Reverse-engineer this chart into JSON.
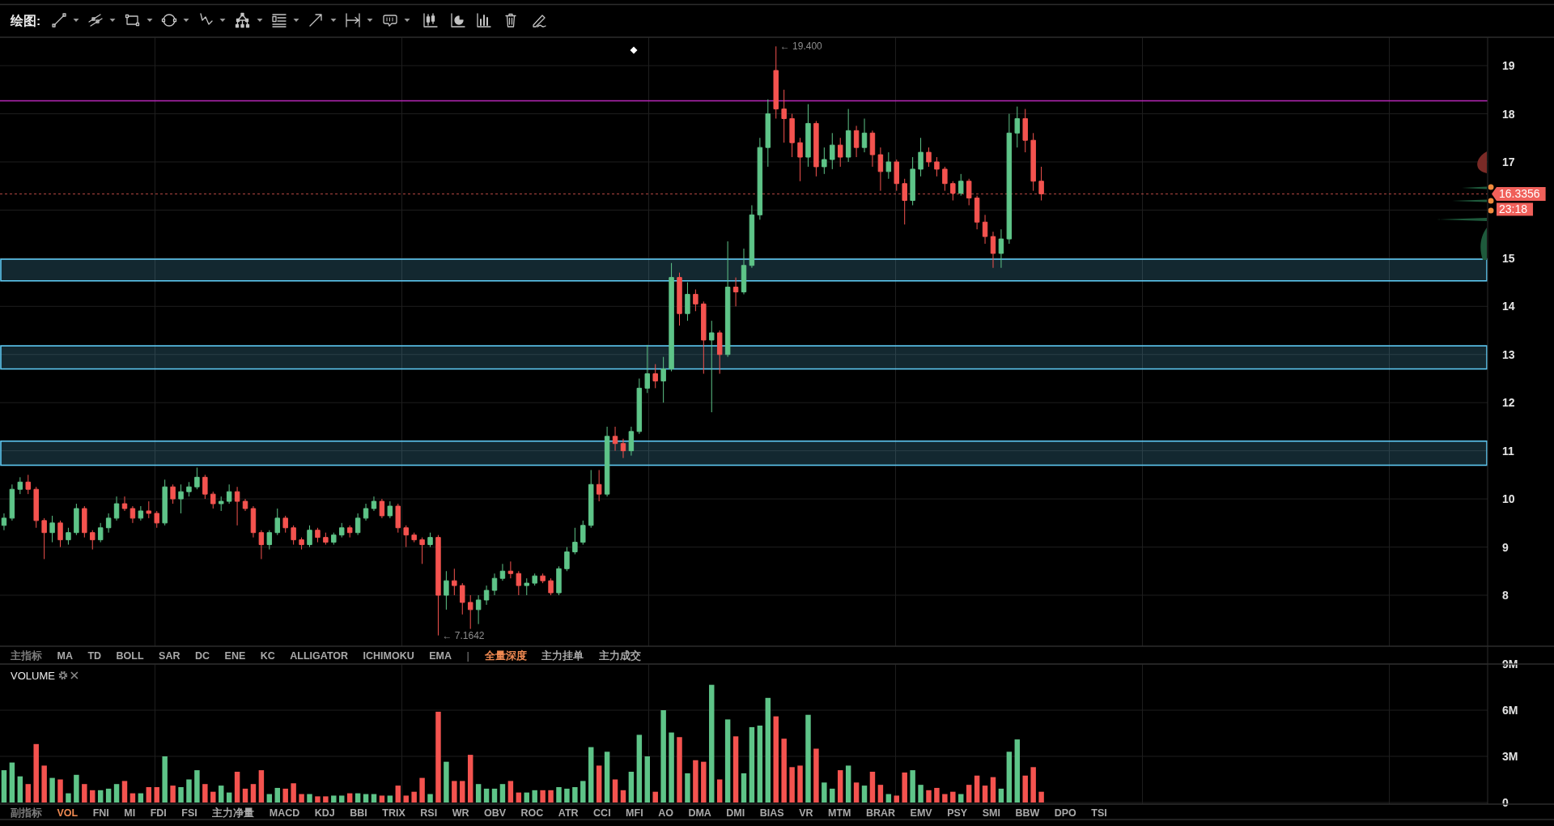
{
  "chart_data": [
    {
      "type": "other",
      "annotations": [
        "绘图:"
      ]
    },
    {
      "type": "candlestick",
      "categories": [
        null,
        null,
        null,
        null,
        null,
        null,
        null,
        null,
        null,
        null,
        null,
        null,
        null,
        null,
        null,
        null,
        null,
        null,
        null,
        null,
        null,
        null,
        null,
        null,
        null,
        null,
        null,
        null,
        null,
        null,
        null,
        null,
        null,
        null,
        null,
        null,
        null,
        null,
        null,
        null,
        null,
        null,
        null,
        null,
        null,
        null,
        null,
        null,
        null,
        null,
        null,
        null,
        null,
        null,
        null,
        null,
        null,
        null,
        null,
        null,
        null,
        null,
        null,
        null,
        null,
        null,
        null,
        null,
        null,
        null,
        null,
        null,
        null,
        null,
        null,
        null,
        null,
        null,
        null,
        null,
        null,
        null,
        null,
        null,
        null,
        null,
        null,
        null,
        null,
        null,
        null,
        null,
        null,
        null,
        null,
        null,
        null,
        null,
        null,
        null,
        null,
        null,
        null,
        null,
        null,
        null,
        null,
        null,
        null,
        null,
        null,
        null,
        null,
        null,
        null,
        null,
        null,
        null,
        null,
        null,
        null,
        null,
        null,
        null,
        null,
        null,
        null,
        null,
        null,
        null,
        null,
        null,
        null,
        null,
        null,
        null,
        null,
        null,
        null,
        null,
        null,
        null,
        null,
        null,
        null,
        null,
        null,
        null,
        null,
        null,
        null,
        null,
        null,
        null,
        null,
        null,
        null,
        null,
        null,
        null,
        null,
        null,
        null,
        null,
        null,
        null,
        null,
        null,
        null,
        null,
        null,
        null,
        null,
        null,
        null,
        null,
        null,
        null,
        null,
        null,
        null,
        null,
        null,
        null,
        null
      ],
      "ohlc": [
        [
          9.45,
          9.7,
          9.35,
          9.6
        ],
        [
          9.6,
          10.3,
          9.55,
          10.2
        ],
        [
          10.2,
          10.45,
          10.1,
          10.35
        ],
        [
          10.35,
          10.5,
          10.1,
          10.2
        ],
        [
          10.2,
          10.25,
          9.4,
          9.55
        ],
        [
          9.55,
          9.6,
          8.75,
          9.3
        ],
        [
          9.3,
          9.65,
          9.1,
          9.5
        ],
        [
          9.5,
          9.55,
          9.0,
          9.15
        ],
        [
          9.15,
          9.4,
          9.05,
          9.3
        ],
        [
          9.3,
          9.9,
          9.25,
          9.8
        ],
        [
          9.8,
          9.85,
          9.2,
          9.3
        ],
        [
          9.3,
          9.35,
          8.95,
          9.15
        ],
        [
          9.15,
          9.5,
          9.1,
          9.4
        ],
        [
          9.4,
          9.7,
          9.3,
          9.6
        ],
        [
          9.6,
          10.05,
          9.55,
          9.9
        ],
        [
          9.9,
          10.05,
          9.75,
          9.8
        ],
        [
          9.8,
          9.85,
          9.5,
          9.6
        ],
        [
          9.6,
          9.85,
          9.55,
          9.75
        ],
        [
          9.75,
          9.95,
          9.6,
          9.7
        ],
        [
          9.7,
          9.75,
          9.4,
          9.5
        ],
        [
          9.5,
          10.4,
          9.45,
          10.25
        ],
        [
          10.25,
          10.3,
          9.9,
          10.0
        ],
        [
          10.0,
          10.3,
          9.7,
          10.15
        ],
        [
          10.15,
          10.35,
          10.05,
          10.25
        ],
        [
          10.25,
          10.65,
          10.2,
          10.45
        ],
        [
          10.45,
          10.5,
          10.0,
          10.1
        ],
        [
          10.1,
          10.15,
          9.8,
          9.9
        ],
        [
          9.9,
          10.05,
          9.75,
          9.95
        ],
        [
          9.95,
          10.3,
          9.9,
          10.15
        ],
        [
          10.15,
          10.25,
          9.45,
          9.95
        ],
        [
          9.95,
          10.0,
          9.75,
          9.8
        ],
        [
          9.8,
          9.85,
          9.2,
          9.3
        ],
        [
          9.3,
          9.35,
          8.75,
          9.05
        ],
        [
          9.05,
          9.35,
          8.95,
          9.3
        ],
        [
          9.3,
          9.8,
          9.25,
          9.6
        ],
        [
          9.6,
          9.65,
          9.3,
          9.4
        ],
        [
          9.4,
          9.45,
          9.05,
          9.15
        ],
        [
          9.15,
          9.2,
          8.95,
          9.05
        ],
        [
          9.05,
          9.45,
          9.0,
          9.35
        ],
        [
          9.35,
          9.4,
          9.1,
          9.2
        ],
        [
          9.2,
          9.3,
          9.05,
          9.1
        ],
        [
          9.1,
          9.3,
          9.05,
          9.25
        ],
        [
          9.25,
          9.5,
          9.2,
          9.4
        ],
        [
          9.4,
          9.45,
          9.2,
          9.3
        ],
        [
          9.3,
          9.7,
          9.25,
          9.6
        ],
        [
          9.6,
          9.9,
          9.55,
          9.8
        ],
        [
          9.8,
          10.05,
          9.75,
          9.95
        ],
        [
          9.95,
          10.0,
          9.6,
          9.65
        ],
        [
          9.65,
          9.95,
          9.6,
          9.85
        ],
        [
          9.85,
          9.9,
          9.3,
          9.4
        ],
        [
          9.4,
          9.45,
          9.0,
          9.25
        ],
        [
          9.25,
          9.3,
          9.1,
          9.15
        ],
        [
          9.15,
          9.2,
          8.65,
          9.05
        ],
        [
          9.05,
          9.3,
          9.0,
          9.2
        ],
        [
          9.2,
          9.25,
          7.1642,
          8.0
        ],
        [
          8.0,
          8.5,
          7.7,
          8.3
        ],
        [
          8.3,
          8.55,
          8.0,
          8.2
        ],
        [
          8.2,
          8.25,
          7.6,
          7.85
        ],
        [
          7.85,
          8.0,
          7.3,
          7.7
        ],
        [
          7.7,
          8.0,
          7.4,
          7.9
        ],
        [
          7.9,
          8.2,
          7.8,
          8.1
        ],
        [
          8.1,
          8.45,
          8.0,
          8.35
        ],
        [
          8.35,
          8.65,
          8.3,
          8.5
        ],
        [
          8.5,
          8.7,
          8.35,
          8.45
        ],
        [
          8.45,
          8.5,
          8.0,
          8.2
        ],
        [
          8.2,
          8.35,
          8.0,
          8.25
        ],
        [
          8.25,
          8.45,
          8.2,
          8.4
        ],
        [
          8.4,
          8.45,
          8.25,
          8.3
        ],
        [
          8.3,
          8.35,
          8.0,
          8.05
        ],
        [
          8.05,
          8.6,
          8.0,
          8.55
        ],
        [
          8.55,
          9.0,
          8.5,
          8.9
        ],
        [
          8.9,
          9.4,
          8.85,
          9.1
        ],
        [
          9.1,
          9.55,
          9.05,
          9.45
        ],
        [
          9.45,
          10.6,
          9.4,
          10.3
        ],
        [
          10.3,
          10.6,
          9.95,
          10.1
        ],
        [
          10.1,
          11.5,
          10.05,
          11.3
        ],
        [
          11.3,
          11.5,
          11.0,
          11.15
        ],
        [
          11.15,
          11.25,
          10.85,
          11.0
        ],
        [
          11.0,
          11.5,
          10.9,
          11.4
        ],
        [
          11.4,
          12.5,
          11.35,
          12.3
        ],
        [
          12.3,
          13.2,
          12.2,
          12.6
        ],
        [
          12.6,
          12.8,
          12.3,
          12.45
        ],
        [
          12.45,
          12.95,
          12.0,
          12.7
        ],
        [
          12.7,
          14.9,
          12.65,
          14.6
        ],
        [
          14.6,
          14.7,
          13.6,
          13.85
        ],
        [
          13.85,
          14.5,
          13.7,
          14.25
        ],
        [
          14.25,
          14.35,
          13.9,
          14.05
        ],
        [
          14.05,
          14.1,
          12.6,
          13.3
        ],
        [
          13.3,
          13.7,
          11.8,
          13.45
        ],
        [
          13.45,
          13.5,
          12.6,
          13.0
        ],
        [
          13.0,
          15.35,
          12.95,
          14.4
        ],
        [
          14.4,
          14.6,
          14.0,
          14.3
        ],
        [
          14.3,
          15.2,
          14.25,
          14.85
        ],
        [
          14.85,
          16.1,
          14.8,
          15.9
        ],
        [
          15.9,
          17.5,
          15.8,
          17.3
        ],
        [
          17.3,
          18.3,
          16.9,
          18.0
        ],
        [
          18.9,
          19.4,
          17.9,
          18.1
        ],
        [
          18.1,
          18.5,
          17.4,
          17.9
        ],
        [
          17.9,
          18.0,
          17.1,
          17.4
        ],
        [
          17.4,
          17.5,
          16.6,
          17.1
        ],
        [
          17.1,
          18.2,
          16.9,
          17.8
        ],
        [
          17.8,
          17.85,
          16.7,
          16.9
        ],
        [
          16.9,
          17.3,
          16.75,
          17.05
        ],
        [
          17.05,
          17.6,
          16.85,
          17.35
        ],
        [
          17.35,
          17.5,
          16.9,
          17.1
        ],
        [
          17.1,
          18.1,
          17.0,
          17.65
        ],
        [
          17.65,
          17.75,
          17.1,
          17.3
        ],
        [
          17.3,
          17.9,
          17.2,
          17.6
        ],
        [
          17.6,
          17.65,
          16.9,
          17.15
        ],
        [
          17.15,
          17.3,
          16.4,
          16.8
        ],
        [
          16.8,
          17.2,
          16.65,
          17.0
        ],
        [
          17.0,
          17.05,
          16.4,
          16.55
        ],
        [
          16.55,
          16.65,
          15.7,
          16.2
        ],
        [
          16.2,
          17.1,
          16.1,
          16.85
        ],
        [
          16.85,
          17.5,
          16.7,
          17.2
        ],
        [
          17.2,
          17.3,
          16.9,
          17.0
        ],
        [
          17.0,
          17.1,
          16.7,
          16.85
        ],
        [
          16.85,
          16.9,
          16.4,
          16.55
        ],
        [
          16.55,
          16.6,
          16.2,
          16.35
        ],
        [
          16.35,
          16.75,
          16.3,
          16.6
        ],
        [
          16.6,
          16.65,
          16.1,
          16.25
        ],
        [
          16.25,
          16.3,
          15.6,
          15.75
        ],
        [
          15.75,
          15.9,
          15.3,
          15.45
        ],
        [
          15.45,
          15.55,
          14.8,
          15.1
        ],
        [
          15.1,
          15.6,
          14.8,
          15.4
        ],
        [
          15.4,
          18.0,
          15.3,
          17.6
        ],
        [
          17.6,
          18.15,
          17.3,
          17.9
        ],
        [
          17.9,
          18.1,
          17.2,
          17.45
        ],
        [
          17.45,
          17.6,
          16.4,
          16.6
        ],
        [
          16.6,
          16.9,
          16.2,
          16.3356
        ],
        null,
        null,
        null,
        null,
        null,
        null,
        null,
        null,
        null,
        null,
        null,
        null,
        null,
        null,
        null,
        null,
        null,
        null,
        null,
        null,
        null,
        null,
        null,
        null,
        null,
        null,
        null,
        null,
        null,
        null,
        null,
        null,
        null,
        null,
        null,
        null,
        null,
        null,
        null,
        null,
        null,
        null,
        null,
        null,
        null,
        null,
        null,
        null,
        null,
        null,
        null,
        null,
        null,
        null,
        null
      ],
      "colors": [
        "#5ec488",
        "#5ec488",
        "#5ec488",
        "#f4534f",
        "#f4534f",
        "#f4534f",
        "#5ec488",
        "#f4534f",
        "#5ec488",
        "#5ec488",
        "#f4534f",
        "#f4534f",
        "#5ec488",
        "#5ec488",
        "#5ec488",
        "#f4534f",
        "#f4534f",
        "#5ec488",
        "#f4534f",
        "#f4534f",
        "#5ec488",
        "#f4534f",
        "#5ec488",
        "#5ec488",
        "#5ec488",
        "#f4534f",
        "#f4534f",
        "#5ec488",
        "#5ec488",
        "#f4534f",
        "#f4534f",
        "#f4534f",
        "#f4534f",
        "#5ec488",
        "#5ec488",
        "#f4534f",
        "#f4534f",
        "#f4534f",
        "#5ec488",
        "#f4534f",
        "#f4534f",
        "#5ec488",
        "#5ec488",
        "#f4534f",
        "#5ec488",
        "#5ec488",
        "#5ec488",
        "#f4534f",
        "#5ec488",
        "#f4534f",
        "#f4534f",
        "#f4534f",
        "#f4534f",
        "#5ec488",
        "#f4534f",
        "#5ec488",
        "#f4534f",
        "#f4534f",
        "#f4534f",
        "#5ec488",
        "#5ec488",
        "#5ec488",
        "#5ec488",
        "#f4534f",
        "#f4534f",
        "#5ec488",
        "#5ec488",
        "#f4534f",
        "#f4534f",
        "#5ec488",
        "#5ec488",
        "#5ec488",
        "#5ec488",
        "#5ec488",
        "#f4534f",
        "#5ec488",
        "#f4534f",
        "#f4534f",
        "#5ec488",
        "#5ec488",
        "#5ec488",
        "#f4534f",
        "#5ec488",
        "#5ec488",
        "#f4534f",
        "#5ec488",
        "#f4534f",
        "#f4534f",
        "#5ec488",
        "#f4534f",
        "#5ec488",
        "#f4534f",
        "#5ec488",
        "#5ec488",
        "#5ec488",
        "#5ec488",
        "#f4534f",
        "#f4534f",
        "#f4534f",
        "#f4534f",
        "#5ec488",
        "#f4534f",
        "#5ec488",
        "#5ec488",
        "#f4534f",
        "#5ec488",
        "#f4534f",
        "#5ec488",
        "#f4534f",
        "#f4534f",
        "#5ec488",
        "#f4534f",
        "#f4534f",
        "#5ec488",
        "#5ec488",
        "#f4534f",
        "#f4534f",
        "#f4534f",
        "#f4534f",
        "#5ec488",
        "#f4534f",
        "#f4534f",
        "#f4534f",
        "#f4534f",
        "#5ec488",
        "#5ec488",
        "#5ec488",
        "#f4534f",
        "#f4534f",
        "#f4534f",
        null,
        null,
        null,
        null,
        null,
        null,
        null,
        null,
        null,
        null,
        null,
        null,
        null,
        null,
        null,
        null,
        null,
        null,
        null,
        null,
        null,
        null,
        null,
        null,
        null,
        null,
        null,
        null,
        null,
        null,
        null,
        null,
        null,
        null,
        null,
        null,
        null,
        null,
        null,
        null,
        null,
        null,
        null,
        null,
        null,
        null,
        null,
        null,
        null,
        null,
        null,
        null,
        null,
        null,
        null
      ],
      "ylim": [
        6.94,
        19.59
      ],
      "yticks": [
        8,
        9,
        10,
        11,
        12,
        13,
        14,
        15,
        {
          "value": 16,
          "label": null
        },
        17,
        18,
        19
      ],
      "grid": true,
      "ref_lines": [
        {
          "axis": "y",
          "value": 18.27,
          "color": "#b827b8"
        },
        {
          "axis": "y",
          "value": 16.3356,
          "label": "16.3356",
          "color": "#f0605a",
          "line_style": "dotted"
        }
      ],
      "bands": [
        {
          "axis": "y",
          "from": 14.53,
          "to": 14.98,
          "color": "#5ec8f2"
        },
        {
          "axis": "y",
          "from": 12.7,
          "to": 13.18,
          "color": "#5ec8f2"
        },
        {
          "axis": "y",
          "from": 10.7,
          "to": 11.2,
          "color": "#5ec8f2"
        }
      ],
      "annotations": [
        "← 19.400",
        "← 7.1642",
        "23:18"
      ]
    },
    {
      "type": "other",
      "annotations": [
        "主指标",
        "MA",
        "TD",
        "BOLL",
        "SAR",
        "DC",
        "ENE",
        "KC",
        "ALLIGATOR",
        "ICHIMOKU",
        "EMA",
        "|",
        "全量深度",
        "主力挂单",
        "主力成交"
      ],
      "colors": [
        "#7c7c7c",
        "#a9a9a9",
        "#a9a9a9",
        "#a9a9a9",
        "#a9a9a9",
        "#a9a9a9",
        "#a9a9a9",
        "#a9a9a9",
        "#a9a9a9",
        "#a9a9a9",
        "#a9a9a9",
        "#5a5a5a",
        "#f08a52",
        "#a9a9a9",
        "#a9a9a9"
      ]
    },
    {
      "type": "bar",
      "title": "VOLUME",
      "categories": [
        null,
        null,
        null,
        null,
        null,
        null,
        null,
        null,
        null,
        null,
        null,
        null,
        null,
        null,
        null,
        null,
        null,
        null,
        null,
        null,
        null,
        null,
        null,
        null,
        null,
        null,
        null,
        null,
        null,
        null,
        null,
        null,
        null,
        null,
        null,
        null,
        null,
        null,
        null,
        null,
        null,
        null,
        null,
        null,
        null,
        null,
        null,
        null,
        null,
        null,
        null,
        null,
        null,
        null,
        null,
        null,
        null,
        null,
        null,
        null,
        null,
        null,
        null,
        null,
        null,
        null,
        null,
        null,
        null,
        null,
        null,
        null,
        null,
        null,
        null,
        null,
        null,
        null,
        null,
        null,
        null,
        null,
        null,
        null,
        null,
        null,
        null,
        null,
        null,
        null,
        null,
        null,
        null,
        null,
        null,
        null,
        null,
        null,
        null,
        null,
        null,
        null,
        null,
        null,
        null,
        null,
        null,
        null,
        null,
        null,
        null,
        null,
        null,
        null,
        null,
        null,
        null,
        null,
        null,
        null,
        null,
        null,
        null,
        null,
        null,
        null,
        null,
        null,
        null,
        null,
        null,
        null,
        null,
        null,
        null,
        null,
        null,
        null,
        null,
        null,
        null,
        null,
        null,
        null,
        null,
        null,
        null,
        null,
        null,
        null,
        null,
        null,
        null,
        null,
        null,
        null,
        null,
        null,
        null,
        null,
        null,
        null,
        null,
        null,
        null,
        null,
        null,
        null,
        null,
        null,
        null,
        null,
        null,
        null,
        null,
        null,
        null,
        null,
        null,
        null,
        null,
        null,
        null,
        null,
        null
      ],
      "values": [
        2100000,
        2600000,
        1700000,
        1200000,
        3800000,
        2400000,
        1600000,
        1500000,
        600000,
        1800000,
        1200000,
        800000,
        800000,
        900000,
        1200000,
        1400000,
        600000,
        600000,
        1000000,
        1000000,
        3000000,
        1100000,
        1000000,
        1500000,
        2100000,
        1200000,
        700000,
        1100000,
        650000,
        2000000,
        900000,
        1200000,
        2100000,
        550000,
        950000,
        900000,
        1250000,
        550000,
        550000,
        400000,
        400000,
        450000,
        450000,
        600000,
        600000,
        550000,
        550000,
        450000,
        450000,
        1100000,
        450000,
        700000,
        1600000,
        550000,
        5900000,
        2650000,
        1400000,
        1400000,
        3100000,
        1200000,
        900000,
        900000,
        1200000,
        1400000,
        650000,
        650000,
        800000,
        800000,
        800000,
        1000000,
        900000,
        1000000,
        1400000,
        3600000,
        2400000,
        3300000,
        1500000,
        800000,
        2000000,
        4400000,
        3000000,
        700000,
        6000000,
        4550000,
        4250000,
        1900000,
        2750000,
        2650000,
        7650000,
        1500000,
        5400000,
        4300000,
        1900000,
        4900000,
        5000000,
        6800000,
        5600000,
        4150000,
        2300000,
        2400000,
        5700000,
        3500000,
        1300000,
        900000,
        2100000,
        2400000,
        1300000,
        1100000,
        2000000,
        1150000,
        550000,
        450000,
        1950000,
        2100000,
        1150000,
        800000,
        950000,
        550000,
        700000,
        550000,
        1150000,
        1750000,
        1100000,
        1650000,
        900000,
        3300000,
        4100000,
        1750000,
        2300000,
        700000,
        null,
        null,
        null,
        null,
        null,
        null,
        null,
        null,
        null,
        null,
        null,
        null,
        null,
        null,
        null,
        null,
        null,
        null,
        null,
        null,
        null,
        null,
        null,
        null,
        null,
        null,
        null,
        null,
        null,
        null,
        null,
        null,
        null,
        null,
        null,
        null,
        null,
        null,
        null,
        null,
        null,
        null,
        null,
        null,
        null,
        null,
        null,
        null,
        null,
        null,
        null,
        null,
        null,
        null,
        null
      ],
      "colors": [
        "#5ec488",
        "#5ec488",
        "#5ec488",
        "#f4534f",
        "#f4534f",
        "#f4534f",
        "#5ec488",
        "#f4534f",
        "#5ec488",
        "#5ec488",
        "#f4534f",
        "#f4534f",
        "#5ec488",
        "#5ec488",
        "#5ec488",
        "#f4534f",
        "#f4534f",
        "#5ec488",
        "#f4534f",
        "#f4534f",
        "#5ec488",
        "#f4534f",
        "#5ec488",
        "#5ec488",
        "#5ec488",
        "#f4534f",
        "#f4534f",
        "#5ec488",
        "#5ec488",
        "#f4534f",
        "#f4534f",
        "#f4534f",
        "#f4534f",
        "#5ec488",
        "#5ec488",
        "#f4534f",
        "#f4534f",
        "#f4534f",
        "#5ec488",
        "#f4534f",
        "#f4534f",
        "#5ec488",
        "#5ec488",
        "#f4534f",
        "#5ec488",
        "#5ec488",
        "#5ec488",
        "#f4534f",
        "#5ec488",
        "#f4534f",
        "#f4534f",
        "#f4534f",
        "#f4534f",
        "#5ec488",
        "#f4534f",
        "#5ec488",
        "#f4534f",
        "#f4534f",
        "#f4534f",
        "#5ec488",
        "#5ec488",
        "#5ec488",
        "#5ec488",
        "#f4534f",
        "#f4534f",
        "#5ec488",
        "#5ec488",
        "#f4534f",
        "#f4534f",
        "#5ec488",
        "#5ec488",
        "#5ec488",
        "#5ec488",
        "#5ec488",
        "#f4534f",
        "#5ec488",
        "#f4534f",
        "#f4534f",
        "#5ec488",
        "#5ec488",
        "#5ec488",
        "#f4534f",
        "#5ec488",
        "#5ec488",
        "#f4534f",
        "#5ec488",
        "#f4534f",
        "#f4534f",
        "#5ec488",
        "#f4534f",
        "#5ec488",
        "#f4534f",
        "#5ec488",
        "#5ec488",
        "#5ec488",
        "#5ec488",
        "#f4534f",
        "#f4534f",
        "#f4534f",
        "#f4534f",
        "#5ec488",
        "#f4534f",
        "#5ec488",
        "#5ec488",
        "#f4534f",
        "#5ec488",
        "#f4534f",
        "#5ec488",
        "#f4534f",
        "#f4534f",
        "#5ec488",
        "#f4534f",
        "#f4534f",
        "#5ec488",
        "#5ec488",
        "#f4534f",
        "#f4534f",
        "#f4534f",
        "#f4534f",
        "#5ec488",
        "#f4534f",
        "#f4534f",
        "#f4534f",
        "#f4534f",
        "#5ec488",
        "#5ec488",
        "#5ec488",
        "#f4534f",
        "#f4534f",
        "#f4534f",
        null,
        null,
        null,
        null,
        null,
        null,
        null,
        null,
        null,
        null,
        null,
        null,
        null,
        null,
        null,
        null,
        null,
        null,
        null,
        null,
        null,
        null,
        null,
        null,
        null,
        null,
        null,
        null,
        null,
        null,
        null,
        null,
        null,
        null,
        null,
        null,
        null,
        null,
        null,
        null,
        null,
        null,
        null,
        null,
        null,
        null,
        null,
        null,
        null,
        null,
        null,
        null,
        null,
        null,
        null
      ],
      "ylim": [
        0,
        9000000
      ],
      "yticks": [
        0,
        {
          "value": 3000000,
          "label": "3M"
        },
        {
          "value": 6000000,
          "label": "6M"
        },
        {
          "value": 9000000,
          "label": "9M"
        }
      ],
      "grid": true
    },
    {
      "type": "other",
      "annotations": [
        "副指标",
        "VOL",
        "FNI",
        "MI",
        "FDI",
        "FSI",
        "主力净量",
        "MACD",
        "KDJ",
        "BBI",
        "TRIX",
        "RSI",
        "WR",
        "OBV",
        "ROC",
        "ATR",
        "CCI",
        "MFI",
        "AO",
        "DMA",
        "DMI",
        "BIAS",
        "VR",
        "MTM",
        "BRAR",
        "EMV",
        "PSY",
        "SMI",
        "BBW",
        "DPO",
        "TSI"
      ],
      "colors": [
        "#7c7c7c",
        "#f08a52",
        "#a9a9a9",
        "#a9a9a9",
        "#a9a9a9",
        "#a9a9a9",
        "#a9a9a9",
        "#a9a9a9",
        "#a9a9a9",
        "#a9a9a9",
        "#a9a9a9",
        "#a9a9a9",
        "#a9a9a9",
        "#a9a9a9",
        "#a9a9a9",
        "#a9a9a9",
        "#a9a9a9",
        "#a9a9a9",
        "#a9a9a9",
        "#a9a9a9",
        "#a9a9a9",
        "#a9a9a9",
        "#a9a9a9",
        "#a9a9a9",
        "#a9a9a9",
        "#a9a9a9",
        "#a9a9a9",
        "#a9a9a9",
        "#a9a9a9",
        "#a9a9a9",
        "#a9a9a9"
      ]
    }
  ]
}
